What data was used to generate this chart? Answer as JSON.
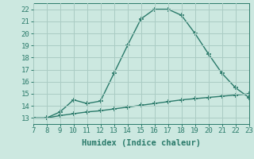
{
  "x": [
    7,
    8,
    9,
    10,
    11,
    12,
    13,
    14,
    15,
    16,
    17,
    18,
    19,
    20,
    21,
    22,
    23
  ],
  "y_curve": [
    13.0,
    13.0,
    13.5,
    14.5,
    14.2,
    14.4,
    16.7,
    19.0,
    21.2,
    22.0,
    22.0,
    21.5,
    20.0,
    18.3,
    16.7,
    15.5,
    14.7
  ],
  "y_line": [
    13.0,
    13.0,
    13.2,
    13.35,
    13.5,
    13.6,
    13.75,
    13.9,
    14.05,
    14.2,
    14.35,
    14.5,
    14.6,
    14.7,
    14.8,
    14.9,
    15.0
  ],
  "line_color": "#2a7a6a",
  "bg_color": "#cce8e0",
  "grid_color": "#aaccc4",
  "xlabel": "Humidex (Indice chaleur)",
  "xlim": [
    7,
    23
  ],
  "ylim": [
    12.5,
    22.5
  ],
  "xticks": [
    7,
    8,
    9,
    10,
    11,
    12,
    13,
    14,
    15,
    16,
    17,
    18,
    19,
    20,
    21,
    22,
    23
  ],
  "yticks": [
    13,
    14,
    15,
    16,
    17,
    18,
    19,
    20,
    21,
    22
  ],
  "marker": "+",
  "marker_size": 5,
  "linewidth": 1.0,
  "tick_fontsize": 6.5,
  "xlabel_fontsize": 7.5
}
